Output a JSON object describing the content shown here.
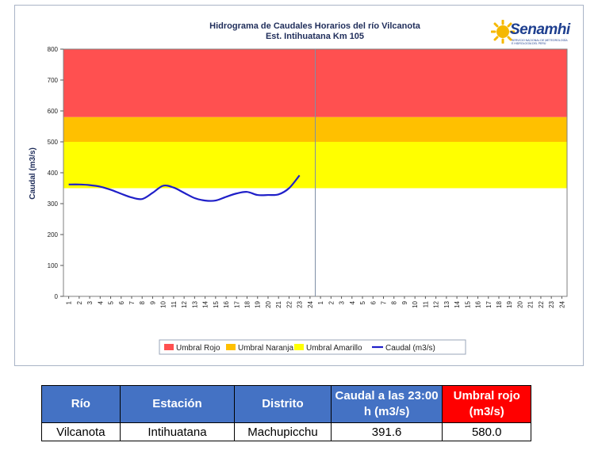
{
  "chart_data": {
    "type": "line",
    "title": "Hidrograma de Caudales Horarios del río Vilcanota",
    "subtitle": "Est. Intihuatana Km 105",
    "ylabel": "Caudal (m3/s)",
    "ylim": [
      0,
      800
    ],
    "yticks": [
      0,
      100,
      200,
      300,
      400,
      500,
      600,
      700,
      800
    ],
    "x_ticks": [
      "1",
      "2",
      "3",
      "4",
      "5",
      "6",
      "7",
      "8",
      "9",
      "10",
      "11",
      "12",
      "13",
      "14",
      "15",
      "16",
      "17",
      "18",
      "19",
      "20",
      "21",
      "22",
      "23",
      "24",
      "1",
      "2",
      "3",
      "4",
      "5",
      "6",
      "7",
      "8",
      "9",
      "10",
      "11",
      "12",
      "13",
      "14",
      "15",
      "16",
      "17",
      "18",
      "19",
      "20",
      "21",
      "22",
      "23",
      "24"
    ],
    "thresholds": [
      {
        "name": "Umbral Rojo",
        "from": 580,
        "to": 800,
        "color": "#ff5050"
      },
      {
        "name": "Umbral Naranja",
        "from": 500,
        "to": 580,
        "color": "#ffc000"
      },
      {
        "name": "Umbral Amarillo",
        "from": 350,
        "to": 500,
        "color": "#ffff00"
      }
    ],
    "series": [
      {
        "name": "Caudal (m3/s)",
        "color": "#1f1fc8",
        "values": [
          362,
          362,
          360,
          355,
          345,
          332,
          320,
          315,
          335,
          358,
          352,
          335,
          318,
          310,
          310,
          322,
          333,
          338,
          328,
          328,
          330,
          350,
          391.6
        ]
      }
    ],
    "legend_position": "bottom-right",
    "grid": false
  },
  "logo": {
    "brand": "Senamhi",
    "sub": "SERVICIO NACIONAL DE METEOROLOGÍA E HIDROLOGÍA DEL PERÚ"
  },
  "table": {
    "headers": [
      "Río",
      "Estación",
      "Distrito",
      "Caudal a las 23:00 h (m3/s)",
      "Umbral rojo (m3/s)"
    ],
    "row": [
      "Vilcanota",
      "Intihuatana",
      "Machupicchu",
      "391.6",
      "580.0"
    ]
  }
}
